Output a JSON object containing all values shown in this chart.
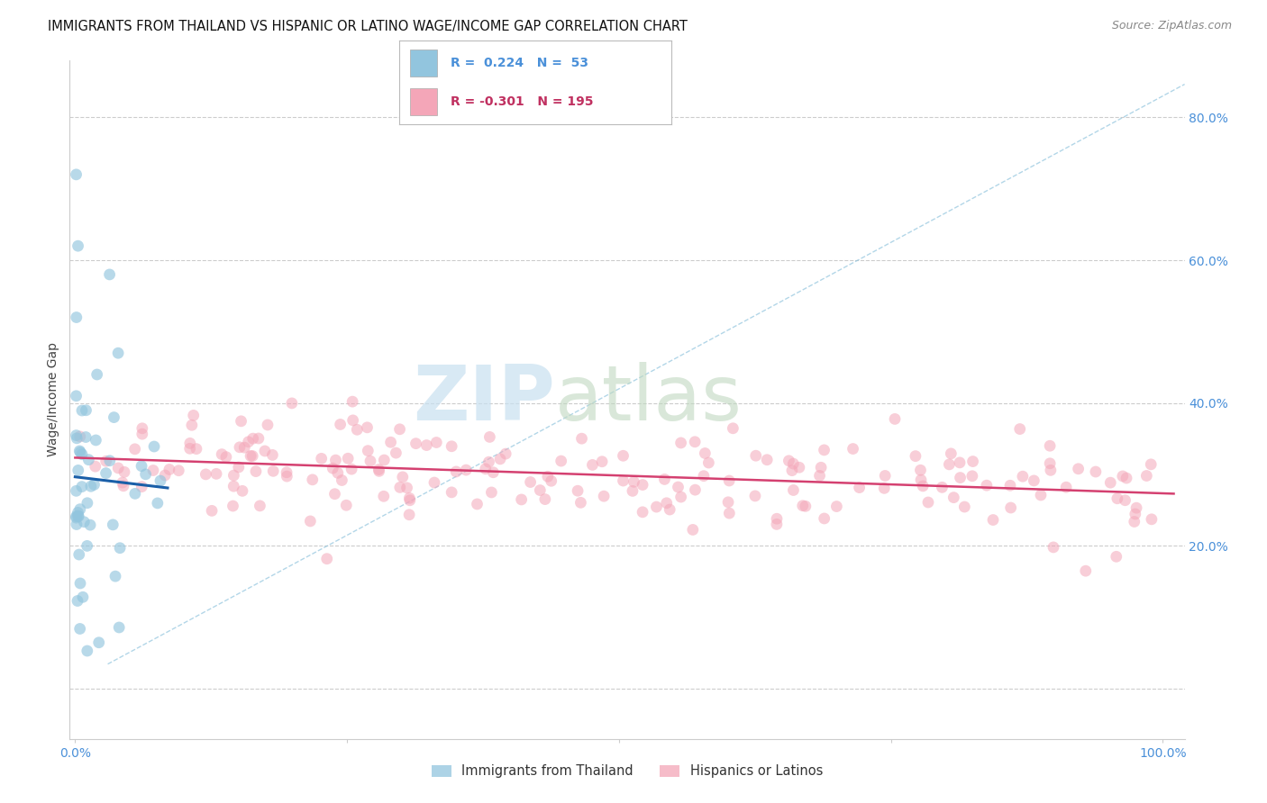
{
  "title": "IMMIGRANTS FROM THAILAND VS HISPANIC OR LATINO WAGE/INCOME GAP CORRELATION CHART",
  "source_text": "Source: ZipAtlas.com",
  "ylabel": "Wage/Income Gap",
  "xlim": [
    -0.005,
    1.02
  ],
  "ylim": [
    -0.07,
    0.88
  ],
  "ytick_positions": [
    0.0,
    0.2,
    0.4,
    0.6,
    0.8
  ],
  "ytick_labels": [
    "",
    "20.0%",
    "40.0%",
    "60.0%",
    "80.0%"
  ],
  "xtick_positions": [
    0.0,
    0.25,
    0.5,
    0.75,
    1.0
  ],
  "xtick_labels": [
    "0.0%",
    "",
    "",
    "",
    "100.0%"
  ],
  "legend_r1": "R =  0.224   N =  53",
  "legend_r2": "R = -0.301   N = 195",
  "scatter_blue": "#92c5de",
  "scatter_pink": "#f4a6b8",
  "line_blue": "#1a5fa8",
  "line_pink": "#d44070",
  "diag_line_color": "#92c5de",
  "tick_color": "#4a90d9",
  "grid_color": "#cccccc",
  "title_fontsize": 10.5,
  "source_fontsize": 9,
  "tick_fontsize": 10,
  "legend_label1": "Immigrants from Thailand",
  "legend_label2": "Hispanics or Latinos",
  "thai_R": 0.224,
  "thai_N": 53,
  "latino_R": -0.301,
  "latino_N": 195,
  "seed": 77
}
